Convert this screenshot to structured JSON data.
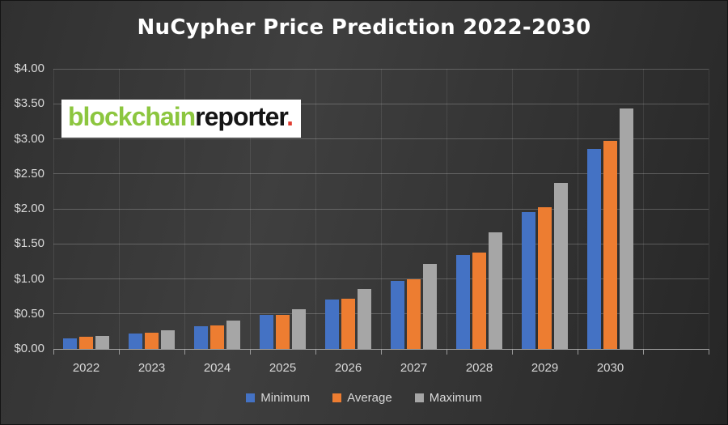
{
  "title": "NuCypher Price Prediction 2022-2030",
  "watermark": {
    "green_text": "blockchain",
    "dark_text": "reporter",
    "dot": "."
  },
  "chart_data": {
    "type": "bar",
    "title": "NuCypher Price Prediction 2022-2030",
    "categories": [
      "2022",
      "2023",
      "2024",
      "2025",
      "2026",
      "2027",
      "2028",
      "2029",
      "2030"
    ],
    "series": [
      {
        "name": "Minimum",
        "color": "#4472C4",
        "values": [
          0.15,
          0.22,
          0.32,
          0.48,
          0.71,
          0.97,
          1.34,
          1.95,
          2.86
        ]
      },
      {
        "name": "Average",
        "color": "#ED7D31",
        "values": [
          0.17,
          0.23,
          0.34,
          0.49,
          0.72,
          1.0,
          1.38,
          2.02,
          2.97
        ]
      },
      {
        "name": "Maximum",
        "color": "#A6A6A6",
        "values": [
          0.18,
          0.27,
          0.4,
          0.57,
          0.85,
          1.21,
          1.66,
          2.37,
          3.43
        ]
      }
    ],
    "xlabel": "",
    "ylabel": "",
    "ylim": [
      0,
      4.0
    ],
    "ytick_step": 0.5,
    "ytick_prefix": "$",
    "ytick_labels": [
      "$0.00",
      "$0.50",
      "$1.00",
      "$1.50",
      "$2.00",
      "$2.50",
      "$3.00",
      "$3.50",
      "$4.00"
    ],
    "grid": true,
    "legend_position": "bottom",
    "background": "dark-gray-gradient"
  }
}
